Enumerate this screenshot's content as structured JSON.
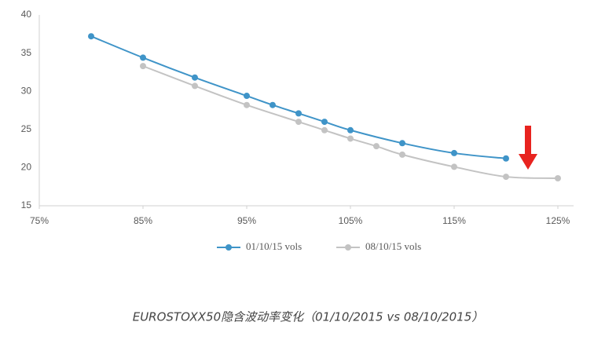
{
  "chart_data": {
    "type": "line",
    "caption": "EUROSTOXX50隐含波动率变化（01/10/2015 vs 08/10/2015）",
    "xlim": [
      75,
      125
    ],
    "xticks": [
      {
        "value": 75,
        "label": "75%"
      },
      {
        "value": 85,
        "label": "85%"
      },
      {
        "value": 95,
        "label": "95%"
      },
      {
        "value": 105,
        "label": "105%"
      },
      {
        "value": 115,
        "label": "115%"
      },
      {
        "value": 125,
        "label": "125%"
      }
    ],
    "ylim": [
      15,
      40
    ],
    "yticks": [
      15,
      20,
      25,
      30,
      35,
      40
    ],
    "grid": false,
    "legend": "bottom",
    "series": [
      {
        "name": "01/10/15 vols",
        "color": "#3f94c8",
        "x": [
          80,
          85,
          90,
          95,
          97.5,
          100,
          102.5,
          105,
          110,
          115,
          120
        ],
        "values": [
          37.2,
          34.4,
          31.8,
          29.4,
          28.2,
          27.1,
          26.0,
          24.9,
          23.2,
          21.9,
          21.2
        ]
      },
      {
        "name": "08/10/15 vols",
        "color": "#c3c3c3",
        "x": [
          85,
          90,
          95,
          100,
          102.5,
          105,
          107.5,
          110,
          115,
          120,
          125
        ],
        "values": [
          33.3,
          30.7,
          28.2,
          26.0,
          24.9,
          23.8,
          22.8,
          21.7,
          20.1,
          18.8,
          18.6
        ]
      }
    ]
  }
}
